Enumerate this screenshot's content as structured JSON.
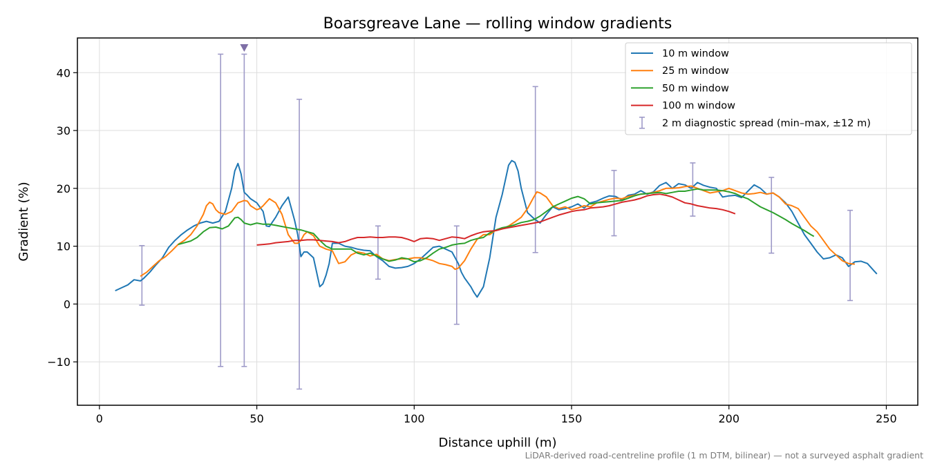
{
  "chart_data": {
    "type": "line",
    "title": "Boarsgreave Lane — rolling window gradients",
    "xlabel": "Distance uphill (m)",
    "ylabel": "Gradient (%)",
    "xlim": [
      -7,
      260
    ],
    "ylim": [
      -17.5,
      46
    ],
    "xticks": [
      0,
      50,
      100,
      150,
      200,
      250
    ],
    "yticks": [
      -10,
      0,
      10,
      20,
      30,
      40
    ],
    "xtick_labels": [
      "0",
      "50",
      "100",
      "150",
      "200",
      "250"
    ],
    "ytick_labels": [
      "−10",
      "0",
      "10",
      "20",
      "30",
      "40"
    ],
    "grid": true,
    "legend_position": "top-right",
    "footnote": "LiDAR-derived road-centreline profile (1 m DTM, bilinear) — not a surveyed asphalt gradient",
    "series": [
      {
        "name": "10 m window",
        "color": "#1f77b4",
        "x": [
          5,
          7,
          9,
          11,
          13,
          14,
          16,
          18,
          20,
          22,
          24,
          26,
          28,
          30,
          32,
          34,
          36,
          38,
          40,
          42,
          43,
          44,
          45,
          46,
          47,
          48,
          50,
          52,
          53,
          54,
          56,
          58,
          60,
          62,
          63,
          64,
          65,
          66,
          68,
          70,
          71,
          72,
          73,
          74,
          76,
          78,
          80,
          82,
          84,
          86,
          88,
          90,
          92,
          94,
          96,
          98,
          100,
          102,
          104,
          106,
          108,
          110,
          112,
          114,
          115,
          116,
          118,
          119,
          120,
          122,
          124,
          126,
          128,
          130,
          131,
          132,
          133,
          134,
          136,
          138,
          140,
          142,
          144,
          146,
          148,
          150,
          152,
          154,
          156,
          158,
          160,
          162,
          164,
          166,
          168,
          170,
          172,
          174,
          176,
          178,
          180,
          182,
          184,
          186,
          188,
          190,
          192,
          194,
          196,
          198,
          200,
          202,
          204,
          206,
          208,
          210,
          212,
          214,
          216,
          218,
          220,
          222,
          224,
          226,
          228,
          230,
          232,
          234,
          236,
          238,
          240,
          242,
          244,
          246,
          247
        ],
        "values": [
          2.3,
          2.8,
          3.3,
          4.2,
          4.0,
          4.4,
          5.5,
          6.8,
          8.0,
          9.8,
          11.0,
          12.0,
          12.8,
          13.5,
          14.0,
          14.3,
          14.0,
          14.3,
          16.0,
          20.0,
          23.0,
          24.3,
          22.5,
          19.3,
          18.8,
          18.2,
          17.5,
          16.0,
          13.5,
          13.4,
          15.0,
          17.0,
          18.5,
          14.5,
          12.0,
          8.2,
          9.0,
          9.0,
          8.0,
          3.0,
          3.5,
          5.0,
          7.0,
          10.5,
          10.5,
          10.0,
          9.8,
          9.5,
          9.3,
          9.2,
          8.2,
          7.5,
          6.5,
          6.2,
          6.3,
          6.5,
          7.0,
          7.8,
          8.8,
          9.8,
          10.0,
          9.5,
          9.0,
          7.0,
          5.5,
          4.5,
          3.0,
          2.0,
          1.2,
          3.0,
          8.0,
          15.0,
          19.0,
          24.0,
          24.8,
          24.5,
          23.0,
          20.0,
          15.8,
          14.8,
          14.0,
          15.5,
          16.8,
          16.3,
          16.5,
          16.8,
          17.3,
          16.6,
          17.5,
          17.8,
          18.3,
          18.7,
          18.6,
          18.0,
          18.8,
          19.0,
          19.6,
          19.0,
          19.4,
          20.5,
          21.0,
          20.0,
          20.8,
          20.6,
          20.0,
          21.0,
          20.5,
          20.2,
          20.0,
          18.5,
          18.7,
          18.8,
          18.4,
          19.5,
          20.6,
          20.0,
          19.0,
          19.2,
          18.5,
          17.5,
          16.0,
          14.0,
          12.0,
          10.5,
          9.0,
          7.8,
          8.0,
          8.5,
          8.0,
          6.5,
          7.3,
          7.4,
          7.0,
          5.8,
          5.2
        ]
      },
      {
        "name": "25 m window",
        "color": "#ff7f0e",
        "x": [
          13,
          15,
          17,
          19,
          21,
          23,
          25,
          27,
          29,
          31,
          33,
          34,
          35,
          36,
          37,
          38,
          40,
          42,
          44,
          46,
          47,
          48,
          50,
          51,
          52,
          54,
          56,
          57,
          58,
          60,
          62,
          63,
          64,
          65,
          66,
          68,
          70,
          72,
          74,
          76,
          78,
          80,
          82,
          84,
          86,
          88,
          90,
          92,
          94,
          96,
          98,
          100,
          102,
          104,
          106,
          108,
          110,
          112,
          113,
          114,
          116,
          118,
          120,
          122,
          124,
          126,
          128,
          130,
          132,
          134,
          136,
          138,
          139,
          140,
          142,
          144,
          146,
          148,
          150,
          152,
          154,
          156,
          158,
          160,
          162,
          164,
          166,
          168,
          170,
          172,
          174,
          176,
          178,
          180,
          182,
          184,
          186,
          188,
          190,
          192,
          194,
          196,
          198,
          200,
          202,
          204,
          206,
          208,
          210,
          212,
          214,
          216,
          218,
          220,
          222,
          224,
          226,
          228,
          230,
          232,
          234,
          236,
          238,
          240
        ],
        "values": [
          4.8,
          5.5,
          6.5,
          7.5,
          8.2,
          9.2,
          10.3,
          11.0,
          12.0,
          13.5,
          15.5,
          17.0,
          17.6,
          17.3,
          16.3,
          15.8,
          15.5,
          16.0,
          17.5,
          17.9,
          17.8,
          17.0,
          16.3,
          16.5,
          17.0,
          18.2,
          17.5,
          16.5,
          15.5,
          12.0,
          10.5,
          10.5,
          11.0,
          12.0,
          12.5,
          11.8,
          10.0,
          9.5,
          9.2,
          7.0,
          7.3,
          8.5,
          9.0,
          8.8,
          8.3,
          8.6,
          7.8,
          7.5,
          7.7,
          7.8,
          7.8,
          8.0,
          8.0,
          7.8,
          7.5,
          7.0,
          6.8,
          6.5,
          6.0,
          6.2,
          7.5,
          9.5,
          11.2,
          12.0,
          12.0,
          12.8,
          13.0,
          13.5,
          14.2,
          15.0,
          16.5,
          18.5,
          19.4,
          19.2,
          18.5,
          17.0,
          16.5,
          16.8,
          16.3,
          16.6,
          17.0,
          16.8,
          17.5,
          17.8,
          18.1,
          18.3,
          18.2,
          18.6,
          18.8,
          19.0,
          19.1,
          19.3,
          19.6,
          20.0,
          20.0,
          20.1,
          20.3,
          20.4,
          20.0,
          19.6,
          19.2,
          19.4,
          19.6,
          20.0,
          19.6,
          19.2,
          19.0,
          19.1,
          19.3,
          19.0,
          19.2,
          18.5,
          17.3,
          17.0,
          16.5,
          15.0,
          13.5,
          12.5,
          11.0,
          9.5,
          8.5,
          7.5,
          7.0,
          6.9
        ]
      },
      {
        "name": "50 m window",
        "color": "#2ca02c",
        "x": [
          25,
          27,
          29,
          31,
          33,
          35,
          37,
          39,
          41,
          42,
          43,
          44,
          45,
          46,
          48,
          50,
          52,
          54,
          56,
          58,
          60,
          62,
          64,
          66,
          68,
          70,
          72,
          74,
          76,
          78,
          80,
          82,
          84,
          86,
          88,
          90,
          92,
          94,
          96,
          98,
          100,
          102,
          104,
          106,
          108,
          110,
          112,
          114,
          116,
          118,
          120,
          122,
          124,
          126,
          128,
          130,
          132,
          134,
          136,
          138,
          140,
          142,
          144,
          146,
          148,
          150,
          152,
          154,
          156,
          158,
          160,
          162,
          164,
          166,
          168,
          170,
          172,
          174,
          176,
          178,
          180,
          182,
          184,
          186,
          188,
          190,
          192,
          194,
          196,
          198,
          200,
          202,
          204,
          206,
          208,
          210,
          212,
          214,
          216,
          218,
          220,
          222,
          224,
          226,
          227
        ],
        "values": [
          10.3,
          10.6,
          10.9,
          11.5,
          12.5,
          13.2,
          13.3,
          13.0,
          13.5,
          14.2,
          14.9,
          15.0,
          14.6,
          14.0,
          13.7,
          14.0,
          13.8,
          13.8,
          13.6,
          13.4,
          13.2,
          13.0,
          12.8,
          12.5,
          12.2,
          11.0,
          10.0,
          9.5,
          9.5,
          9.5,
          9.5,
          8.8,
          8.5,
          8.8,
          8.3,
          7.8,
          7.4,
          7.6,
          8.0,
          7.8,
          7.3,
          7.5,
          8.0,
          8.8,
          9.5,
          9.8,
          10.2,
          10.4,
          10.5,
          11.0,
          11.3,
          11.5,
          12.3,
          12.8,
          13.2,
          13.4,
          13.7,
          14.1,
          14.3,
          14.6,
          15.2,
          16.0,
          16.8,
          17.3,
          17.8,
          18.3,
          18.6,
          18.2,
          17.3,
          17.5,
          17.6,
          17.7,
          17.8,
          17.9,
          18.3,
          18.7,
          19.0,
          19.1,
          19.2,
          19.3,
          19.1,
          19.3,
          19.5,
          19.5,
          19.7,
          19.9,
          19.7,
          19.7,
          19.7,
          19.6,
          19.4,
          19.1,
          18.6,
          18.2,
          17.5,
          16.8,
          16.3,
          15.8,
          15.2,
          14.6,
          13.9,
          13.3,
          12.7,
          12.0,
          11.7
        ]
      },
      {
        "name": "100 m window",
        "color": "#d62728",
        "x": [
          50,
          52,
          54,
          56,
          58,
          60,
          62,
          64,
          66,
          68,
          70,
          72,
          74,
          76,
          78,
          80,
          82,
          84,
          86,
          88,
          90,
          92,
          94,
          96,
          98,
          100,
          102,
          104,
          106,
          108,
          110,
          112,
          114,
          116,
          118,
          120,
          122,
          124,
          126,
          128,
          130,
          132,
          134,
          136,
          138,
          140,
          142,
          144,
          146,
          148,
          150,
          152,
          154,
          156,
          158,
          160,
          162,
          164,
          166,
          168,
          170,
          172,
          174,
          176,
          178,
          180,
          182,
          184,
          186,
          188,
          190,
          192,
          194,
          196,
          198,
          200,
          202
        ],
        "values": [
          10.2,
          10.3,
          10.4,
          10.6,
          10.7,
          10.8,
          11.0,
          11.0,
          11.1,
          11.1,
          11.0,
          10.9,
          10.8,
          10.6,
          10.8,
          11.2,
          11.5,
          11.5,
          11.6,
          11.5,
          11.5,
          11.6,
          11.6,
          11.5,
          11.2,
          10.8,
          11.3,
          11.4,
          11.3,
          11.0,
          11.3,
          11.6,
          11.5,
          11.3,
          11.8,
          12.2,
          12.5,
          12.6,
          12.7,
          13.0,
          13.2,
          13.4,
          13.6,
          13.8,
          14.0,
          14.2,
          14.6,
          15.0,
          15.4,
          15.7,
          16.0,
          16.2,
          16.3,
          16.6,
          16.7,
          16.8,
          17.0,
          17.3,
          17.6,
          17.8,
          18.0,
          18.3,
          18.7,
          18.9,
          19.0,
          18.8,
          18.5,
          18.0,
          17.5,
          17.3,
          17.0,
          16.8,
          16.6,
          16.5,
          16.3,
          16.0,
          15.6
        ]
      }
    ],
    "error_bars": {
      "name": "2 m diagnostic spread (min–max, ±12 m)",
      "color": "#9e9ac8",
      "points": [
        {
          "x": 13.5,
          "low": -0.2,
          "high": 10.1
        },
        {
          "x": 38.5,
          "low": -10.8,
          "high": 43.2
        },
        {
          "x": 46.0,
          "low": -10.8,
          "high": 43.2
        },
        {
          "x": 63.5,
          "low": -14.7,
          "high": 35.4
        },
        {
          "x": 88.5,
          "low": 4.3,
          "high": 13.5
        },
        {
          "x": 113.5,
          "low": -3.5,
          "high": 13.5
        },
        {
          "x": 138.5,
          "low": 8.9,
          "high": 37.6
        },
        {
          "x": 163.5,
          "low": 11.8,
          "high": 23.1
        },
        {
          "x": 188.5,
          "low": 15.2,
          "high": 24.4
        },
        {
          "x": 213.5,
          "low": 8.8,
          "high": 21.9
        },
        {
          "x": 238.5,
          "low": 0.6,
          "high": 16.2
        }
      ],
      "clipped_marker_x": 46.0
    }
  }
}
